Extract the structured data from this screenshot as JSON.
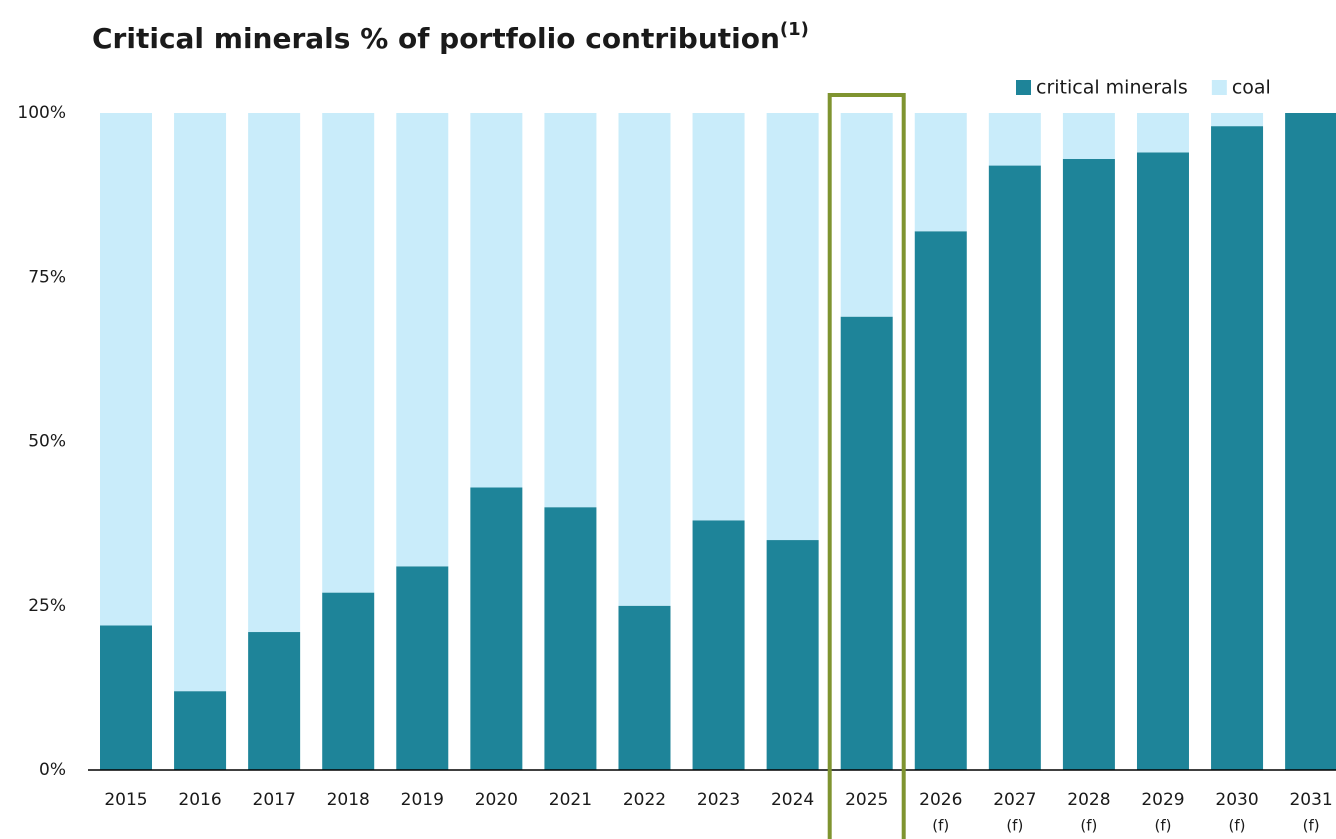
{
  "chart_data": {
    "type": "stacked_bar",
    "title": "Critical minerals % of portfolio contribution",
    "title_superscript": "(1)",
    "categories": [
      "2015",
      "2016",
      "2017",
      "2018",
      "2019",
      "2020",
      "2021",
      "2022",
      "2023",
      "2024",
      "2025",
      "2026",
      "2027",
      "2028",
      "2029",
      "2030",
      "2031"
    ],
    "category_notes": [
      null,
      null,
      null,
      null,
      null,
      null,
      null,
      null,
      null,
      null,
      null,
      "(f)",
      "(f)",
      "(f)",
      "(f)",
      "(f)",
      "(f)"
    ],
    "series": [
      {
        "name": "critical minerals",
        "color": "#1e8499",
        "values": [
          22,
          12,
          21,
          27,
          31,
          43,
          40,
          25,
          38,
          35,
          69,
          82,
          92,
          93,
          94,
          98,
          100
        ]
      },
      {
        "name": "coal",
        "color": "#c9ecfa",
        "values": [
          78,
          88,
          79,
          73,
          69,
          57,
          60,
          75,
          62,
          65,
          31,
          18,
          8,
          7,
          6,
          2,
          0
        ]
      }
    ],
    "ylim": [
      0,
      100
    ],
    "yticks": [
      {
        "value": 0,
        "label": "0%"
      },
      {
        "value": 25,
        "label": "25%"
      },
      {
        "value": 50,
        "label": "50%"
      },
      {
        "value": 75,
        "label": "75%"
      },
      {
        "value": 100,
        "label": "100%"
      }
    ],
    "grid": false,
    "legend": "top-right",
    "highlight": "2025",
    "highlight_color": "#7f9430"
  }
}
